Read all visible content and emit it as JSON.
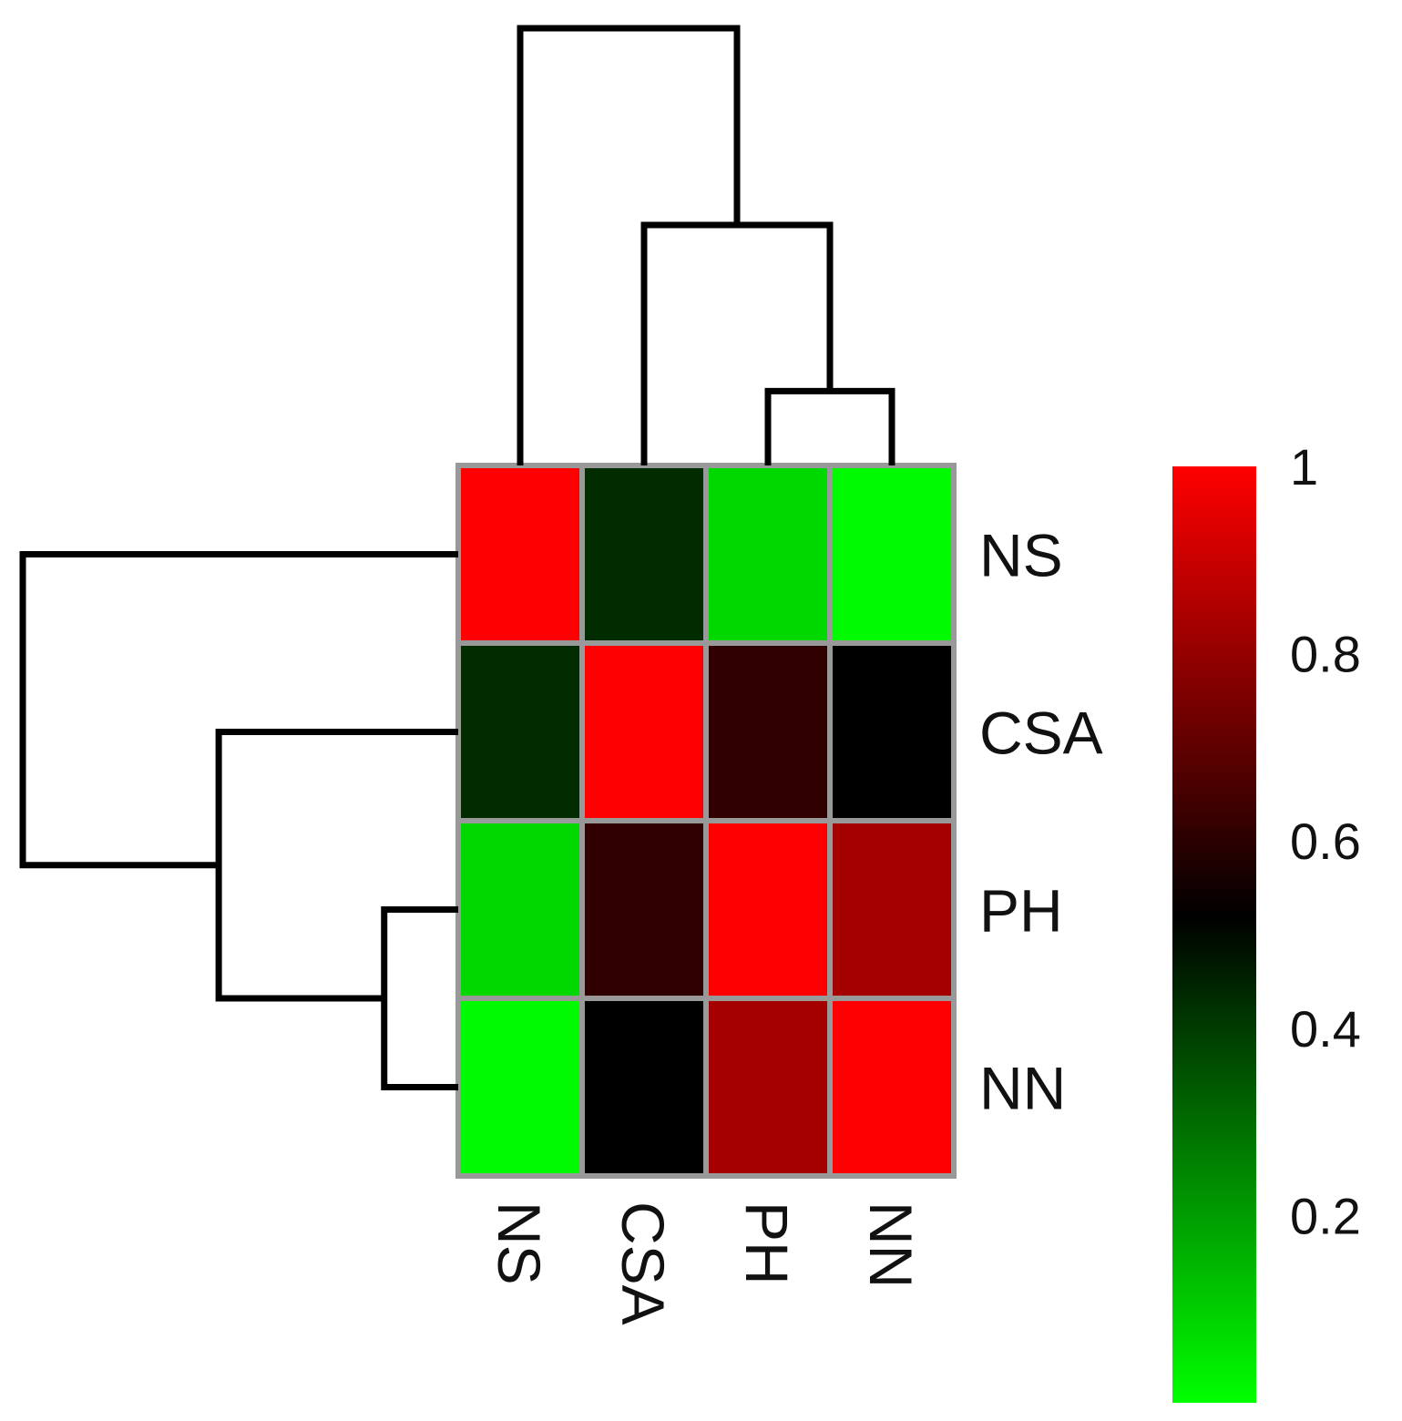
{
  "chart_data": {
    "type": "heatmap",
    "rows": [
      "NS",
      "CSA",
      "PH",
      "NN"
    ],
    "columns": [
      "NS",
      "CSA",
      "PH",
      "NN"
    ],
    "values": [
      [
        1.0,
        0.43,
        0.08,
        0.01
      ],
      [
        0.43,
        1.0,
        0.61,
        0.52
      ],
      [
        0.08,
        0.61,
        1.0,
        0.83
      ],
      [
        0.01,
        0.52,
        0.83,
        1.0
      ]
    ],
    "colorscale": {
      "min": 0.0,
      "mid": 0.52,
      "max": 1.0,
      "low_color": "#00ff00",
      "mid_color": "#000000",
      "high_color": "#ff0000"
    },
    "colorbar_ticks": [
      "1",
      "0.8",
      "0.6",
      "0.4",
      "0.2"
    ],
    "colorbar_tick_values": [
      1.0,
      0.8,
      0.6,
      0.4,
      0.2
    ],
    "dendrogram": {
      "order": [
        "NS",
        "CSA",
        "PH",
        "NN"
      ],
      "merges": [
        {
          "left": [
            "PH"
          ],
          "right": [
            "NN"
          ],
          "height": 0.17
        },
        {
          "left": [
            "CSA"
          ],
          "right": [
            "PH",
            "NN"
          ],
          "height": 0.55
        },
        {
          "left": [
            "NS"
          ],
          "right": [
            "CSA",
            "PH",
            "NN"
          ],
          "height": 1.0
        }
      ]
    },
    "cell_border_color": "#999999",
    "line_color": "#000000"
  }
}
